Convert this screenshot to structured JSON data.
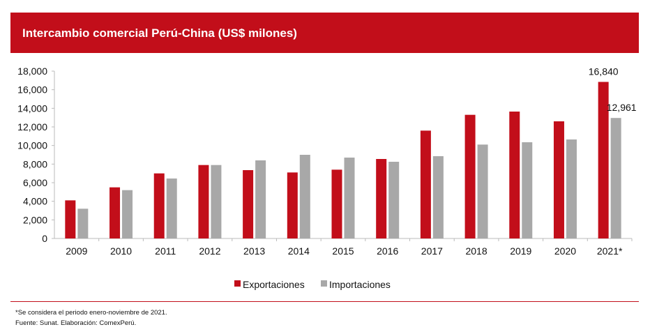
{
  "header": {
    "title": "Intercambio comercial Perú-China (US$ milones)"
  },
  "chart_data": {
    "type": "bar",
    "title": "Intercambio comercial Perú-China (US$ milones)",
    "categories": [
      "2009",
      "2010",
      "2011",
      "2012",
      "2013",
      "2014",
      "2015",
      "2016",
      "2017",
      "2018",
      "2019",
      "2020",
      "2021*"
    ],
    "series": [
      {
        "name": "Exportaciones",
        "color": "#c20e1a",
        "values": [
          4100,
          5500,
          7000,
          7900,
          7350,
          7100,
          7400,
          8550,
          11600,
          13300,
          13650,
          12600,
          16840
        ]
      },
      {
        "name": "Importaciones",
        "color": "#a8a8a8",
        "values": [
          3200,
          5200,
          6450,
          7900,
          8400,
          9000,
          8700,
          8250,
          8850,
          10100,
          10350,
          10650,
          12961
        ]
      }
    ],
    "data_labels": [
      {
        "series": 0,
        "index": 12,
        "text": "16,840"
      },
      {
        "series": 1,
        "index": 12,
        "text": "12,961"
      }
    ],
    "yticks": [
      "0",
      "2,000",
      "4,000",
      "6,000",
      "8,000",
      "10,000",
      "12,000",
      "14,000",
      "16,000",
      "18,000"
    ],
    "ylim": [
      0,
      18000
    ],
    "grid": false,
    "legend": "bottom"
  },
  "footer": {
    "note": "*Se considera el periodo enero-noviembre de 2021.",
    "source": "Fuente: Sunat. Elaboración: ComexPerú."
  }
}
